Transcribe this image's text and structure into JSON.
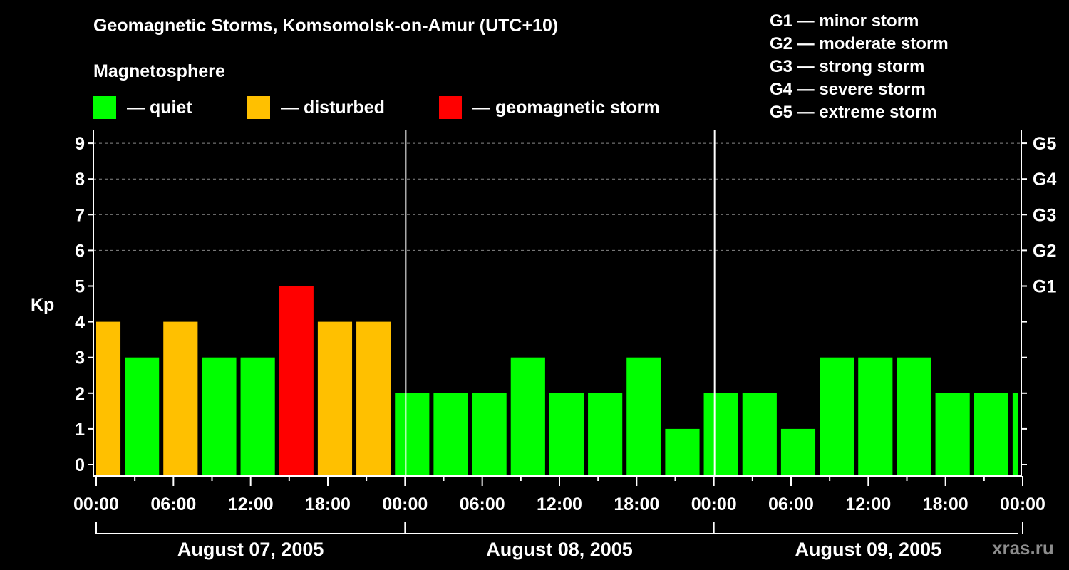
{
  "header": {
    "title": "Geomagnetic Storms, Komsomolsk-on-Amur (UTC+10)",
    "subtitle": "Magnetosphere"
  },
  "legend": [
    {
      "label": "— quiet",
      "color": "#00ff00"
    },
    {
      "label": "— disturbed",
      "color": "#ffc000"
    },
    {
      "label": "— geomagnetic storm",
      "color": "#ff0000"
    }
  ],
  "g_scale": [
    "G1 — minor storm",
    "G2 — moderate storm",
    "G3 — strong storm",
    "G4 — severe storm",
    "G5 — extreme storm"
  ],
  "watermark": "xras.ru",
  "chart_data": {
    "type": "bar",
    "title": "Geomagnetic Storms, Komsomolsk-on-Amur (UTC+10)",
    "xlabel": "",
    "ylabel": "Kp",
    "ylim": [
      0,
      9
    ],
    "y_ticks": [
      0,
      1,
      2,
      3,
      4,
      5,
      6,
      7,
      8,
      9
    ],
    "right_axis_labels": [
      {
        "kp": 5,
        "label": "G1"
      },
      {
        "kp": 6,
        "label": "G2"
      },
      {
        "kp": 7,
        "label": "G3"
      },
      {
        "kp": 8,
        "label": "G4"
      },
      {
        "kp": 9,
        "label": "G5"
      }
    ],
    "x_tick_labels": [
      "00:00",
      "06:00",
      "12:00",
      "18:00",
      "00:00",
      "06:00",
      "12:00",
      "18:00",
      "00:00",
      "06:00",
      "12:00",
      "18:00",
      "00:00"
    ],
    "day_labels": [
      "August 07, 2005",
      "August 08, 2005",
      "August 09, 2005"
    ],
    "grid": "dashed horizontal at Kp 5-9",
    "bar_hours": 3,
    "start_offset_hours": -2,
    "values": [
      4,
      3,
      4,
      3,
      3,
      5,
      4,
      4,
      2,
      2,
      2,
      3,
      2,
      2,
      3,
      1,
      2,
      2,
      1,
      3,
      3,
      3,
      2,
      2,
      2
    ],
    "colors": {
      "quiet": "#00ff00",
      "disturbed": "#ffc000",
      "storm": "#ff0000"
    }
  }
}
